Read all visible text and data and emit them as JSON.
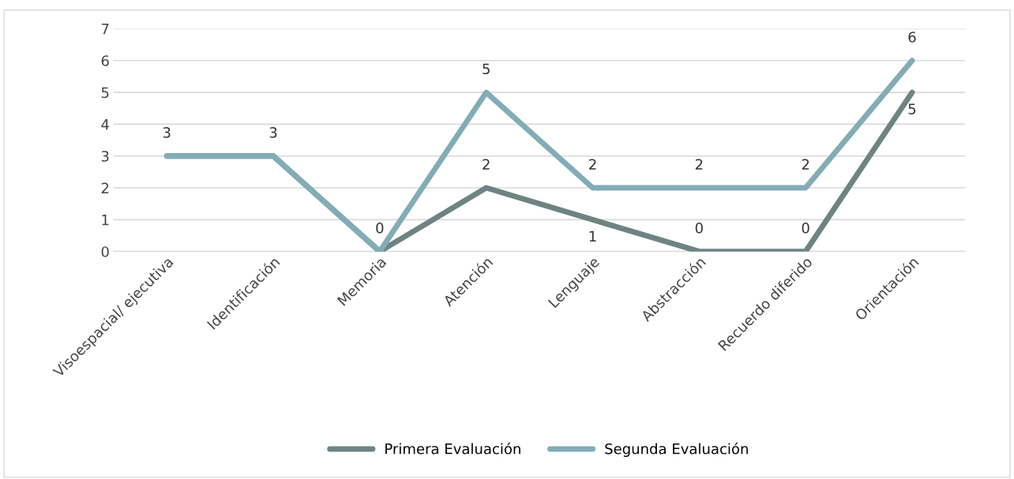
{
  "chart_data": {
    "type": "line",
    "categories": [
      "Visoespacial/ ejecutiva",
      "Identificación",
      "Memoria",
      "Atención",
      "Lenguaje",
      "Abstracción",
      "Recuerdo diferido",
      "Orientación"
    ],
    "series": [
      {
        "name": "Primera Evaluación",
        "color": "#6e8384",
        "values": [
          3,
          3,
          0,
          2,
          1,
          0,
          0,
          5
        ],
        "value_labels": [
          null,
          null,
          null,
          "2",
          "1",
          "0",
          "0",
          "5"
        ]
      },
      {
        "name": "Segunda Evaluación",
        "color": "#82acb6",
        "values": [
          3,
          3,
          0,
          5,
          2,
          2,
          2,
          6
        ]
      }
    ],
    "ylim": [
      0,
      7
    ],
    "yticks": [
      0,
      1,
      2,
      3,
      4,
      5,
      6,
      7
    ],
    "grid": "y",
    "legend": "bottom",
    "data_labels": true,
    "marker": "none",
    "line_style": "solid"
  }
}
